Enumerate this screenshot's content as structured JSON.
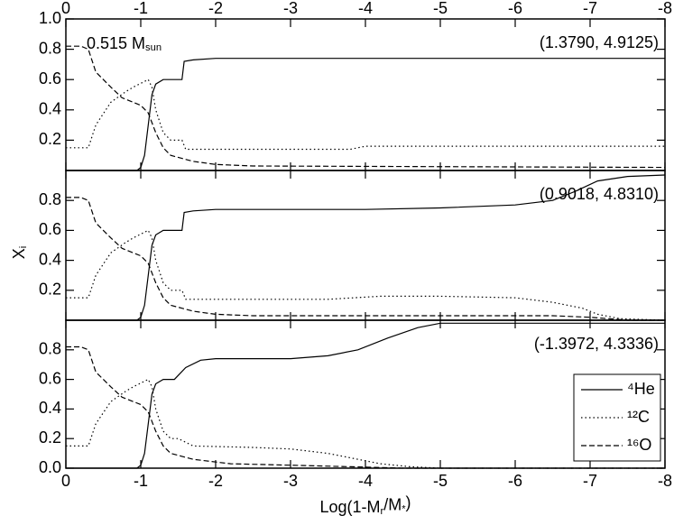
{
  "chart_data": [
    {
      "type": "line",
      "xlim": [
        0,
        -8
      ],
      "xticks": [
        0,
        -1,
        -2,
        -3,
        -4,
        -5,
        -6,
        -7,
        -8
      ],
      "xtick_labels": "top",
      "ylim": [
        0,
        1
      ],
      "yticks": [
        0.2,
        0.4,
        0.6,
        0.8,
        {
          "value": 1,
          "label": "1.0"
        }
      ],
      "label": [
        "0.515 M",
        "sun"
      ],
      "note": "(1.3790, 4.9125)",
      "series": [
        {
          "color": "#000000",
          "dash": "solid",
          "x": [
            0,
            -0.95,
            -1.0,
            -1.05,
            -1.1,
            -1.15,
            -1.2,
            -1.3,
            -1.55,
            -1.58,
            -1.7,
            -2,
            -8
          ],
          "values": [
            0,
            0,
            0.02,
            0.1,
            0.3,
            0.5,
            0.57,
            0.6,
            0.6,
            0.72,
            0.73,
            0.74,
            0.74
          ]
        },
        {
          "color": "#000000",
          "dash": "dotted",
          "x": [
            0,
            -0.3,
            -0.4,
            -0.6,
            -0.8,
            -0.9,
            -1.1,
            -1.15,
            -1.2,
            -1.3,
            -1.4,
            -1.55,
            -1.6,
            -3.8,
            -4.0,
            -8
          ],
          "values": [
            0.15,
            0.15,
            0.3,
            0.45,
            0.52,
            0.55,
            0.6,
            0.55,
            0.4,
            0.25,
            0.2,
            0.2,
            0.14,
            0.14,
            0.16,
            0.16
          ]
        },
        {
          "color": "#000000",
          "dash": "dashed",
          "x": [
            0,
            -0.2,
            -0.3,
            -0.4,
            -0.5,
            -0.6,
            -0.75,
            -0.9,
            -1.0,
            -1.1,
            -1.2,
            -1.3,
            -1.4,
            -1.55,
            -1.7,
            -2.0,
            -2.5,
            -8
          ],
          "values": [
            0.82,
            0.82,
            0.8,
            0.65,
            0.6,
            0.55,
            0.48,
            0.45,
            0.43,
            0.38,
            0.25,
            0.15,
            0.1,
            0.08,
            0.06,
            0.04,
            0.03,
            0.02
          ]
        }
      ]
    },
    {
      "type": "line",
      "xlim": [
        0,
        -8
      ],
      "xticks": [
        0,
        -1,
        -2,
        -3,
        -4,
        -5,
        -6,
        -7,
        -8
      ],
      "ylim": [
        0,
        1
      ],
      "yticks": [
        0.2,
        0.4,
        0.6,
        0.8
      ],
      "ylabel": [
        "X",
        "i"
      ],
      "note": "(0.9018, 4.8310)",
      "series": [
        {
          "color": "#000000",
          "dash": "solid",
          "x": [
            0,
            -0.95,
            -1.0,
            -1.05,
            -1.1,
            -1.15,
            -1.2,
            -1.3,
            -1.55,
            -1.58,
            -1.7,
            -2,
            -4,
            -5,
            -6,
            -6.5,
            -6.8,
            -7.1,
            -7.5,
            -8
          ],
          "values": [
            0,
            0,
            0.02,
            0.1,
            0.3,
            0.5,
            0.57,
            0.6,
            0.6,
            0.72,
            0.73,
            0.74,
            0.74,
            0.75,
            0.77,
            0.8,
            0.86,
            0.93,
            0.96,
            0.97
          ]
        },
        {
          "color": "#000000",
          "dash": "dotted",
          "x": [
            0,
            -0.3,
            -0.4,
            -0.6,
            -0.8,
            -0.9,
            -1.1,
            -1.15,
            -1.2,
            -1.3,
            -1.4,
            -1.55,
            -1.6,
            -3.5,
            -4.2,
            -5,
            -6,
            -6.5,
            -6.9,
            -7.1,
            -7.4,
            -8
          ],
          "values": [
            0.15,
            0.15,
            0.3,
            0.45,
            0.52,
            0.55,
            0.6,
            0.55,
            0.4,
            0.25,
            0.2,
            0.2,
            0.14,
            0.14,
            0.16,
            0.16,
            0.15,
            0.12,
            0.08,
            0.04,
            0.01,
            0
          ]
        },
        {
          "color": "#000000",
          "dash": "dashed",
          "x": [
            0,
            -0.2,
            -0.3,
            -0.4,
            -0.5,
            -0.6,
            -0.75,
            -0.9,
            -1.0,
            -1.1,
            -1.2,
            -1.3,
            -1.4,
            -1.55,
            -1.7,
            -2.0,
            -2.5,
            -6.5,
            -7,
            -7.5,
            -8
          ],
          "values": [
            0.82,
            0.82,
            0.8,
            0.65,
            0.6,
            0.55,
            0.48,
            0.45,
            0.43,
            0.38,
            0.25,
            0.15,
            0.1,
            0.08,
            0.06,
            0.04,
            0.03,
            0.03,
            0.02,
            0,
            0
          ]
        }
      ]
    },
    {
      "type": "line",
      "xlim": [
        0,
        -8
      ],
      "xticks": [
        0,
        -1,
        -2,
        -3,
        -4,
        -5,
        -6,
        -7,
        -8
      ],
      "xtick_labels": "bottom",
      "ylim": [
        0,
        1
      ],
      "yticks": [
        {
          "value": 0,
          "label": "0.0"
        },
        0.2,
        0.4,
        0.6,
        0.8
      ],
      "xlabel": [
        "Log(1-M",
        "r",
        "/M",
        "*",
        ")"
      ],
      "note": "(-1.3972, 4.3336)",
      "legend": "lower right",
      "series": [
        {
          "name": "⁴He",
          "color": "#000000",
          "dash": "solid",
          "x": [
            0,
            -0.95,
            -1.0,
            -1.05,
            -1.1,
            -1.15,
            -1.2,
            -1.3,
            -1.45,
            -1.6,
            -1.8,
            -2,
            -3,
            -3.5,
            -3.9,
            -4.3,
            -4.7,
            -5,
            -8
          ],
          "values": [
            0,
            0,
            0.02,
            0.1,
            0.3,
            0.5,
            0.57,
            0.6,
            0.6,
            0.68,
            0.73,
            0.74,
            0.74,
            0.76,
            0.8,
            0.88,
            0.95,
            0.98,
            0.98
          ]
        },
        {
          "name": "¹²C",
          "color": "#000000",
          "dash": "dotted",
          "x": [
            0,
            -0.3,
            -0.4,
            -0.6,
            -0.8,
            -0.9,
            -1.1,
            -1.15,
            -1.2,
            -1.3,
            -1.4,
            -1.5,
            -1.7,
            -2.5,
            -3,
            -3.5,
            -3.9,
            -4.2,
            -4.6,
            -5,
            -8
          ],
          "values": [
            0.15,
            0.15,
            0.3,
            0.45,
            0.52,
            0.55,
            0.6,
            0.55,
            0.4,
            0.25,
            0.2,
            0.2,
            0.15,
            0.14,
            0.13,
            0.1,
            0.06,
            0.03,
            0.01,
            0,
            0
          ]
        },
        {
          "name": "¹⁶O",
          "color": "#000000",
          "dash": "dashed",
          "x": [
            0,
            -0.2,
            -0.3,
            -0.4,
            -0.5,
            -0.6,
            -0.75,
            -0.9,
            -1.0,
            -1.1,
            -1.2,
            -1.3,
            -1.4,
            -1.55,
            -1.7,
            -2.2,
            -3,
            -3.8,
            -4.5,
            -8
          ],
          "values": [
            0.82,
            0.82,
            0.8,
            0.65,
            0.6,
            0.55,
            0.48,
            0.45,
            0.43,
            0.38,
            0.25,
            0.15,
            0.1,
            0.08,
            0.06,
            0.03,
            0.02,
            0.01,
            0,
            0
          ]
        }
      ]
    }
  ]
}
